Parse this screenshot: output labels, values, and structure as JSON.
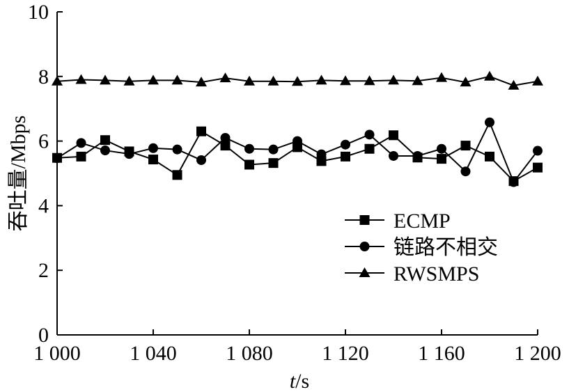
{
  "chart_data": {
    "type": "line",
    "title": "",
    "xlabel": {
      "italic": "t",
      "rest": "/s"
    },
    "ylabel": "吞吐量/Mbps",
    "xlim": [
      1000,
      1200
    ],
    "ylim": [
      0,
      10
    ],
    "xticks": [
      1000,
      1040,
      1080,
      1120,
      1160,
      1200
    ],
    "xtick_labels": [
      "1 000",
      "1 040",
      "1 080",
      "1 120",
      "1 160",
      "1 200"
    ],
    "yticks": [
      0,
      2,
      4,
      6,
      8,
      10
    ],
    "ytick_labels": [
      "0",
      "2",
      "4",
      "6",
      "8",
      "10"
    ],
    "grid": false,
    "legend_position": "right",
    "x": [
      1000,
      1010,
      1020,
      1030,
      1040,
      1050,
      1060,
      1070,
      1080,
      1090,
      1100,
      1110,
      1120,
      1130,
      1140,
      1150,
      1160,
      1170,
      1180,
      1190,
      1200
    ],
    "series": [
      {
        "name": "ECMP",
        "marker": "square",
        "values": [
          5.48,
          5.52,
          6.03,
          5.68,
          5.43,
          4.95,
          6.3,
          5.86,
          5.27,
          5.32,
          5.81,
          5.38,
          5.52,
          5.76,
          6.18,
          5.49,
          5.45,
          5.86,
          5.52,
          4.76,
          5.18
        ]
      },
      {
        "name": "链路不相交",
        "marker": "circle",
        "values": [
          5.47,
          5.94,
          5.71,
          5.6,
          5.78,
          5.74,
          5.41,
          6.1,
          5.76,
          5.74,
          6.0,
          5.59,
          5.89,
          6.2,
          5.54,
          5.54,
          5.76,
          5.06,
          6.58,
          4.73,
          5.7
        ]
      },
      {
        "name": "RWSMPS",
        "marker": "triangle",
        "values": [
          7.85,
          7.9,
          7.88,
          7.85,
          7.88,
          7.88,
          7.82,
          7.95,
          7.85,
          7.85,
          7.84,
          7.88,
          7.86,
          7.86,
          7.88,
          7.86,
          7.96,
          7.82,
          8.0,
          7.72,
          7.85
        ]
      }
    ]
  }
}
